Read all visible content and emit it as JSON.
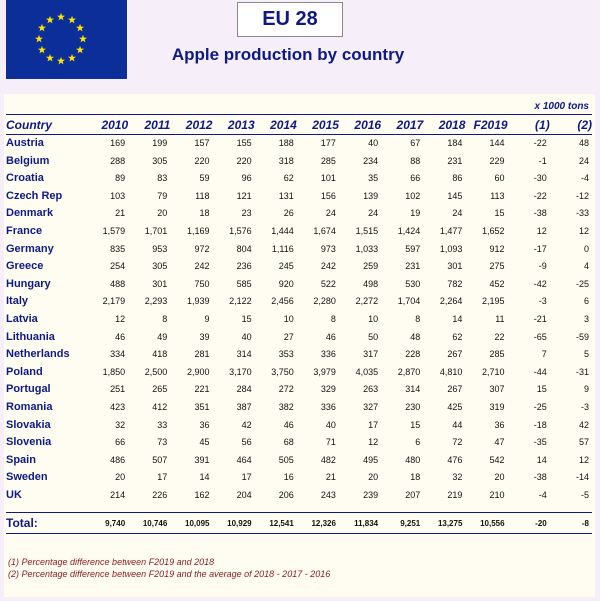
{
  "header": {
    "title": "EU 28",
    "subtitle": "Apple production by country"
  },
  "table": {
    "units": "x 1000 tons",
    "columns": [
      "Country",
      "2010",
      "2011",
      "2012",
      "2013",
      "2014",
      "2015",
      "2016",
      "2017",
      "2018",
      "F2019",
      "(1)",
      "(2)"
    ],
    "rows": [
      [
        "Austria",
        "169",
        "199",
        "157",
        "155",
        "188",
        "177",
        "40",
        "67",
        "184",
        "144",
        "-22",
        "48"
      ],
      [
        "Belgium",
        "288",
        "305",
        "220",
        "220",
        "318",
        "285",
        "234",
        "88",
        "231",
        "229",
        "-1",
        "24"
      ],
      [
        "Croatia",
        "89",
        "83",
        "59",
        "96",
        "62",
        "101",
        "35",
        "66",
        "86",
        "60",
        "-30",
        "-4"
      ],
      [
        "Czech Rep",
        "103",
        "79",
        "118",
        "121",
        "131",
        "156",
        "139",
        "102",
        "145",
        "113",
        "-22",
        "-12"
      ],
      [
        "Denmark",
        "21",
        "20",
        "18",
        "23",
        "26",
        "24",
        "24",
        "19",
        "24",
        "15",
        "-38",
        "-33"
      ],
      [
        "France",
        "1,579",
        "1,701",
        "1,169",
        "1,576",
        "1,444",
        "1,674",
        "1,515",
        "1,424",
        "1,477",
        "1,652",
        "12",
        "12"
      ],
      [
        "Germany",
        "835",
        "953",
        "972",
        "804",
        "1,116",
        "973",
        "1,033",
        "597",
        "1,093",
        "912",
        "-17",
        "0"
      ],
      [
        "Greece",
        "254",
        "305",
        "242",
        "236",
        "245",
        "242",
        "259",
        "231",
        "301",
        "275",
        "-9",
        "4"
      ],
      [
        "Hungary",
        "488",
        "301",
        "750",
        "585",
        "920",
        "522",
        "498",
        "530",
        "782",
        "452",
        "-42",
        "-25"
      ],
      [
        "Italy",
        "2,179",
        "2,293",
        "1,939",
        "2,122",
        "2,456",
        "2,280",
        "2,272",
        "1,704",
        "2,264",
        "2,195",
        "-3",
        "6"
      ],
      [
        "Latvia",
        "12",
        "8",
        "9",
        "15",
        "10",
        "8",
        "10",
        "8",
        "14",
        "11",
        "-21",
        "3"
      ],
      [
        "Lithuania",
        "46",
        "49",
        "39",
        "40",
        "27",
        "46",
        "50",
        "48",
        "62",
        "22",
        "-65",
        "-59"
      ],
      [
        "Netherlands",
        "334",
        "418",
        "281",
        "314",
        "353",
        "336",
        "317",
        "228",
        "267",
        "285",
        "7",
        "5"
      ],
      [
        "Poland",
        "1,850",
        "2,500",
        "2,900",
        "3,170",
        "3,750",
        "3,979",
        "4,035",
        "2,870",
        "4,810",
        "2,710",
        "-44",
        "-31"
      ],
      [
        "Portugal",
        "251",
        "265",
        "221",
        "284",
        "272",
        "329",
        "263",
        "314",
        "267",
        "307",
        "15",
        "9"
      ],
      [
        "Romania",
        "423",
        "412",
        "351",
        "387",
        "382",
        "336",
        "327",
        "230",
        "425",
        "319",
        "-25",
        "-3"
      ],
      [
        "Slovakia",
        "32",
        "33",
        "36",
        "42",
        "46",
        "40",
        "17",
        "15",
        "44",
        "36",
        "-18",
        "42"
      ],
      [
        "Slovenia",
        "66",
        "73",
        "45",
        "56",
        "68",
        "71",
        "12",
        "6",
        "72",
        "47",
        "-35",
        "57"
      ],
      [
        "Spain",
        "486",
        "507",
        "391",
        "464",
        "505",
        "482",
        "495",
        "480",
        "476",
        "542",
        "14",
        "12"
      ],
      [
        "Sweden",
        "20",
        "17",
        "14",
        "17",
        "16",
        "21",
        "20",
        "18",
        "32",
        "20",
        "-38",
        "-14"
      ],
      [
        "UK",
        "214",
        "226",
        "162",
        "204",
        "206",
        "243",
        "239",
        "207",
        "219",
        "210",
        "-4",
        "-5"
      ]
    ],
    "total": [
      "Total:",
      "9,740",
      "10,746",
      "10,095",
      "10,929",
      "12,541",
      "12,326",
      "11,834",
      "9,251",
      "13,275",
      "10,556",
      "-20",
      "-8"
    ]
  },
  "notes": [
    "(1) Percentage difference between F2019 and 2018",
    "(2) Percentage difference between F2019 and the average of 2018 - 2017 - 2016"
  ],
  "colors": {
    "background": "#f6eef8",
    "panel": "#fffdf2",
    "title_blue": "#0d1a86",
    "flag_blue": "#0b2e98",
    "flag_star": "#ffe600",
    "note_red": "#8a1b1b"
  },
  "icons": {
    "flag": "eu-flag-icon"
  }
}
